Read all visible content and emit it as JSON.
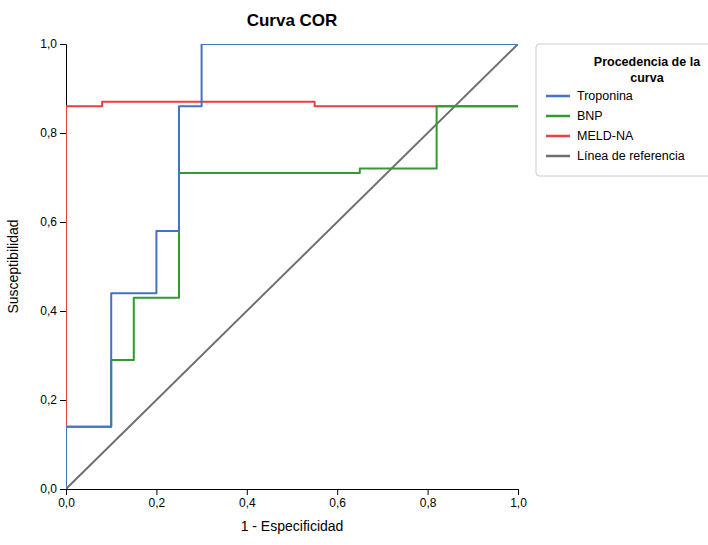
{
  "chart_data": {
    "type": "line",
    "title": "Curva COR",
    "xlabel": "1 - Especificidad",
    "ylabel": "Susceptibilidad",
    "legend_title": "Procedencia de la\ncurva",
    "series": [
      {
        "name": "Troponina",
        "color": "#4472c4",
        "x": [
          0.0,
          0.0,
          0.1,
          0.1,
          0.2,
          0.2,
          0.25,
          0.25,
          0.3,
          0.3,
          1.0
        ],
        "values": [
          0.0,
          0.14,
          0.14,
          0.44,
          0.44,
          0.58,
          0.58,
          0.86,
          0.86,
          1.0,
          1.0
        ]
      },
      {
        "name": "BNP",
        "color": "#339933",
        "x": [
          0.0,
          0.0,
          0.1,
          0.1,
          0.15,
          0.15,
          0.25,
          0.25,
          0.65,
          0.65,
          0.82,
          0.82,
          1.0
        ],
        "values": [
          0.0,
          0.14,
          0.14,
          0.29,
          0.29,
          0.43,
          0.43,
          0.71,
          0.71,
          0.72,
          0.72,
          0.86,
          0.86
        ]
      },
      {
        "name": "MELD-NA",
        "color": "#e84040",
        "x": [
          0.0,
          0.0,
          0.08,
          0.08,
          0.55,
          0.55,
          1.0
        ],
        "values": [
          0.0,
          0.86,
          0.86,
          0.87,
          0.87,
          0.86,
          0.86
        ]
      },
      {
        "name": "Línea de referencia",
        "color": "#707070",
        "x": [
          0.0,
          1.0
        ],
        "values": [
          0.0,
          1.0
        ]
      }
    ],
    "xlim": [
      0.0,
      1.0
    ],
    "ylim": [
      0.0,
      1.0
    ],
    "xticks": [
      {
        "value": 0.0,
        "label": "0,0"
      },
      {
        "value": 0.2,
        "label": "0,2"
      },
      {
        "value": 0.4,
        "label": "0,4"
      },
      {
        "value": 0.6,
        "label": "0,6"
      },
      {
        "value": 0.8,
        "label": "0,8"
      },
      {
        "value": 1.0,
        "label": "1,0"
      }
    ],
    "yticks": [
      {
        "value": 0.0,
        "label": "0,0"
      },
      {
        "value": 0.2,
        "label": "0,2"
      },
      {
        "value": 0.4,
        "label": "0,4"
      },
      {
        "value": 0.6,
        "label": "0,6"
      },
      {
        "value": 0.8,
        "label": "0,8"
      },
      {
        "value": 1.0,
        "label": "1,0"
      }
    ],
    "legend": "upper right"
  }
}
